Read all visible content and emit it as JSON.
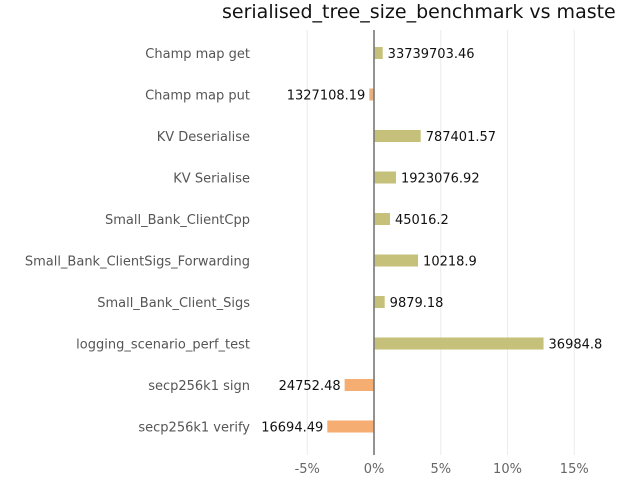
{
  "chart_data": {
    "type": "bar",
    "orientation": "horizontal",
    "title": "serialised_tree_size_benchmark vs maste",
    "xlabel": "",
    "ylabel": "",
    "xlim": [
      -7.5,
      18
    ],
    "grid": true,
    "legend": "none",
    "categories": [
      "Champ map get",
      "Champ map put",
      "KV Deserialise",
      "KV Serialise",
      "Small_Bank_ClientCpp",
      "Small_Bank_ClientSigs_Forwarding",
      "Small_Bank_Client_Sigs",
      "logging_scenario_perf_test",
      "secp256k1 sign",
      "secp256k1 verify"
    ],
    "values": [
      0.65,
      -0.35,
      3.5,
      1.65,
      1.2,
      3.3,
      0.8,
      12.7,
      -2.2,
      -3.5
    ],
    "data_labels": [
      "33739703.46",
      "1327108.19",
      "787401.57",
      "1923076.92",
      "45016.2",
      "10218.9",
      "9879.18",
      "36984.8",
      "24752.48",
      "16694.49"
    ],
    "x_ticks": [
      -5,
      0,
      5,
      10,
      15
    ],
    "x_tick_labels": [
      "-5%",
      "0%",
      "5%",
      "10%",
      "15%"
    ],
    "colors": {
      "positive": "#c5c07a",
      "negative": "#f5ad72",
      "negative_small": "#e8b07f",
      "zero_line": "#777777",
      "grid": "#ececec"
    }
  }
}
